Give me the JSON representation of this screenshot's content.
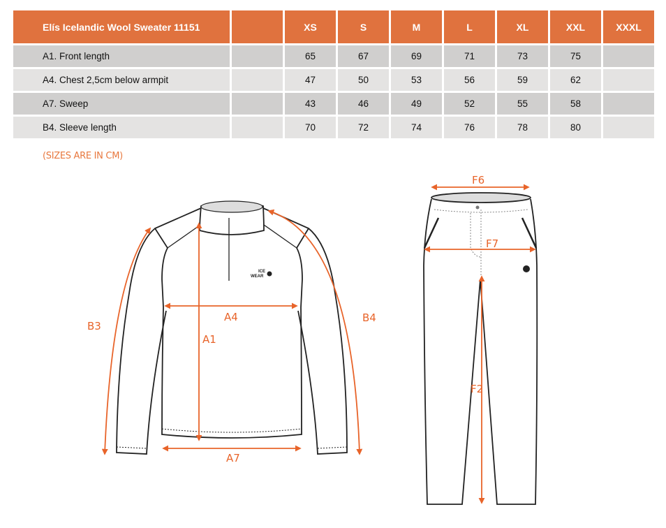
{
  "table": {
    "title": "Elís Icelandic Wool Sweater 11151",
    "sizes": [
      "XS",
      "S",
      "M",
      "L",
      "XL",
      "XXL",
      "XXXL"
    ],
    "rows": [
      {
        "label": "A1. Front length",
        "values": [
          "65",
          "67",
          "69",
          "71",
          "73",
          "75",
          ""
        ]
      },
      {
        "label": "A4. Chest 2,5cm below armpit",
        "values": [
          "47",
          "50",
          "53",
          "56",
          "59",
          "62",
          ""
        ]
      },
      {
        "label": "A7. Sweep",
        "values": [
          "43",
          "46",
          "49",
          "52",
          "55",
          "58",
          ""
        ]
      },
      {
        "label": "B4. Sleeve length",
        "values": [
          "70",
          "72",
          "74",
          "76",
          "78",
          "80",
          ""
        ]
      }
    ]
  },
  "note": "(SIZES ARE IN CM)",
  "diagram": {
    "accent_color": "#E8642A",
    "logo_text": "ICE WEAR",
    "sweater_labels": {
      "a1": "A1",
      "a4": "A4",
      "a7": "A7",
      "b3": "B3",
      "b4": "B4"
    },
    "pants_labels": {
      "f6": "F6",
      "f7": "F7",
      "f2": "F2"
    }
  }
}
